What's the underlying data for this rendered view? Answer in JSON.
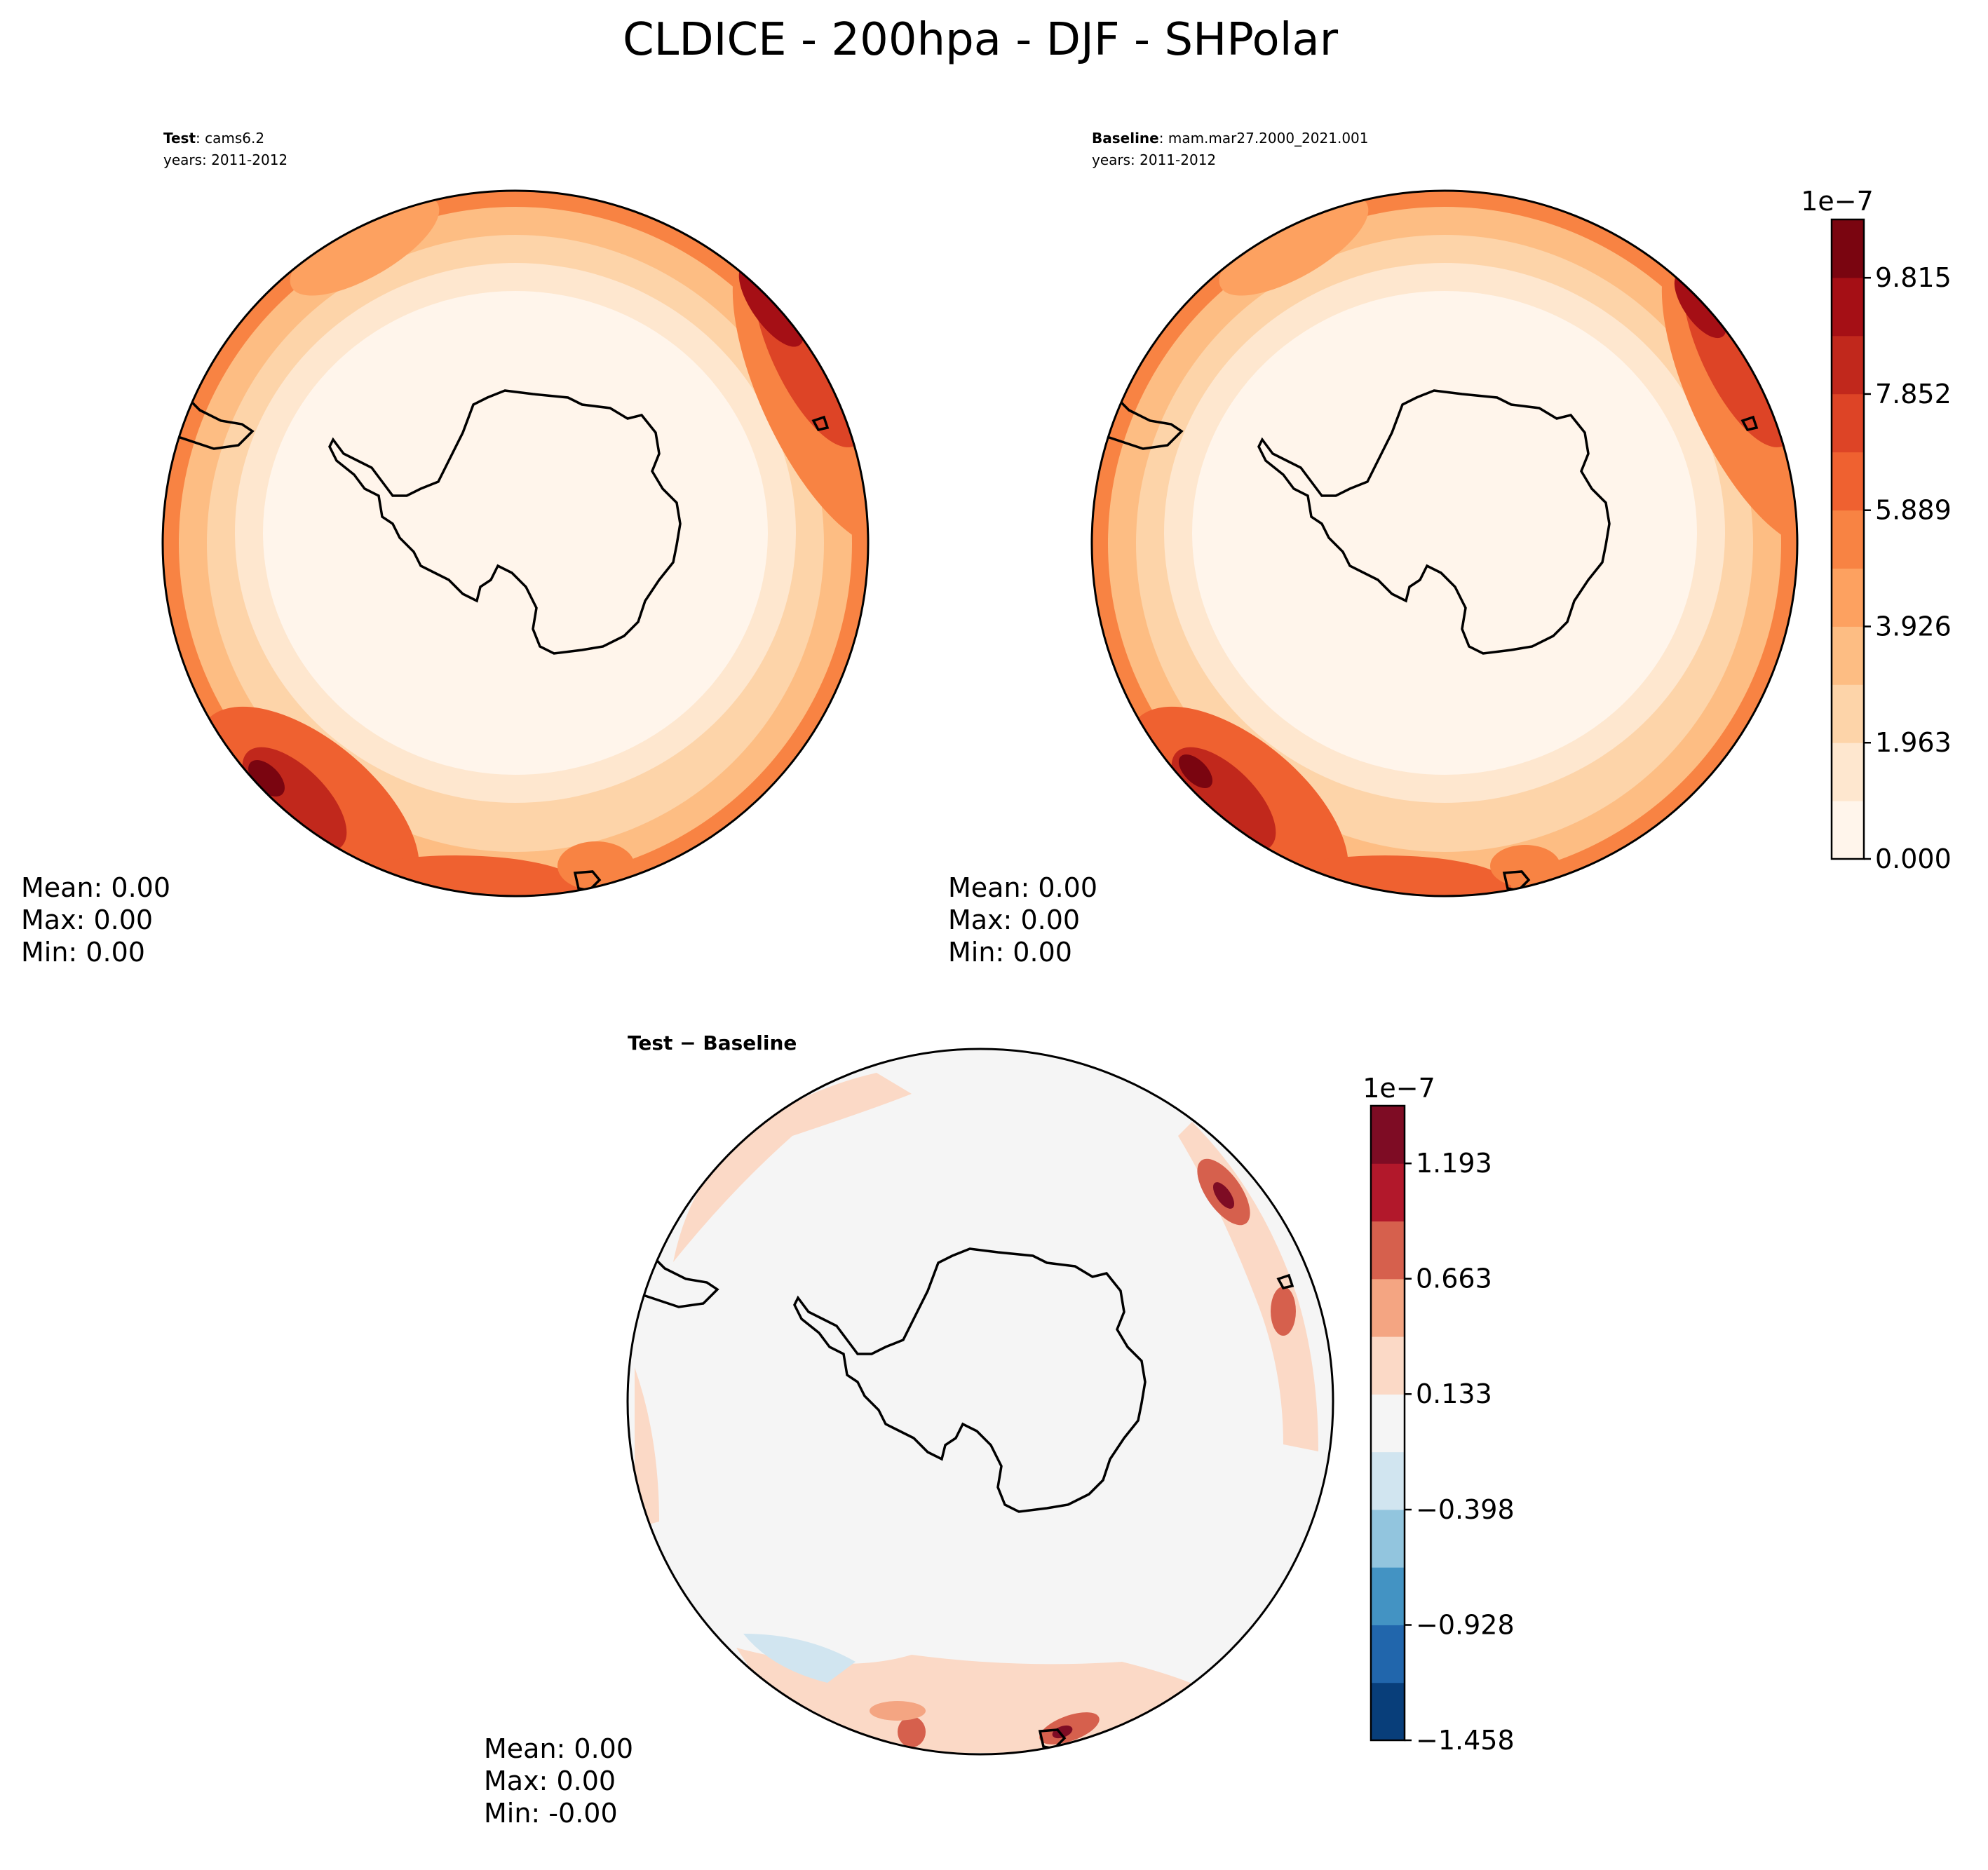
{
  "figure_title": "CLDICE - 200hpa - DJF - SHPolar",
  "colors": {
    "seq": [
      "#fff5eb",
      "#fee7cf",
      "#fdd4a9",
      "#fdbd83",
      "#fda160",
      "#f88343",
      "#ef6130",
      "#dd4426",
      "#c1281c",
      "#a50f15",
      "#7a0510"
    ],
    "div": [
      "#083e7a",
      "#2166ac",
      "#4393c3",
      "#92c5de",
      "#d1e5f0",
      "#f5f5f5",
      "#fbd9c6",
      "#f4a582",
      "#d6604d",
      "#b2182b",
      "#7e0c24"
    ]
  },
  "chart_data": [
    {
      "type": "contour-map",
      "panel": "test",
      "label_bold": "Test",
      "label_rest": ": cams6.2",
      "years": "years: 2011-2012",
      "stats": {
        "mean": "Mean:  0.00",
        "max": "Max:  0.00",
        "min": "Min:  0.00"
      },
      "levels": [
        0.0,
        0.981,
        1.963,
        2.944,
        3.926,
        4.907,
        5.889,
        6.87,
        7.852,
        8.833,
        9.815,
        10.8
      ]
    },
    {
      "type": "contour-map",
      "panel": "baseline",
      "label_bold": "Baseline",
      "label_rest": ": mam.mar27.2000_2021.001",
      "years": "years: 2011-2012",
      "stats": {
        "mean": "Mean:  0.00",
        "max": "Max:  0.00",
        "min": "Min:  0.00"
      },
      "colorbar": {
        "exponent": "1e−7",
        "ticks": [
          0.0,
          1.963,
          3.926,
          5.889,
          7.852,
          9.815
        ],
        "tick_labels": [
          "0.000",
          "1.963",
          "3.926",
          "5.889",
          "7.852",
          "9.815"
        ],
        "range": [
          0.0,
          10.8
        ],
        "n_bins": 11
      }
    },
    {
      "type": "contour-map",
      "panel": "difference",
      "title": "Test − Baseline",
      "stats": {
        "mean": "Mean:  0.00",
        "max": "Max:  0.00",
        "min": "Min: -0.00"
      },
      "colorbar": {
        "exponent": "1e−7",
        "ticks": [
          -1.458,
          -0.928,
          -0.398,
          0.133,
          0.663,
          1.193
        ],
        "tick_labels": [
          "−1.458",
          "−0.928",
          "−0.398",
          "0.133",
          "0.663",
          "1.193"
        ],
        "range": [
          -1.458,
          1.458
        ],
        "n_bins": 11
      }
    }
  ]
}
